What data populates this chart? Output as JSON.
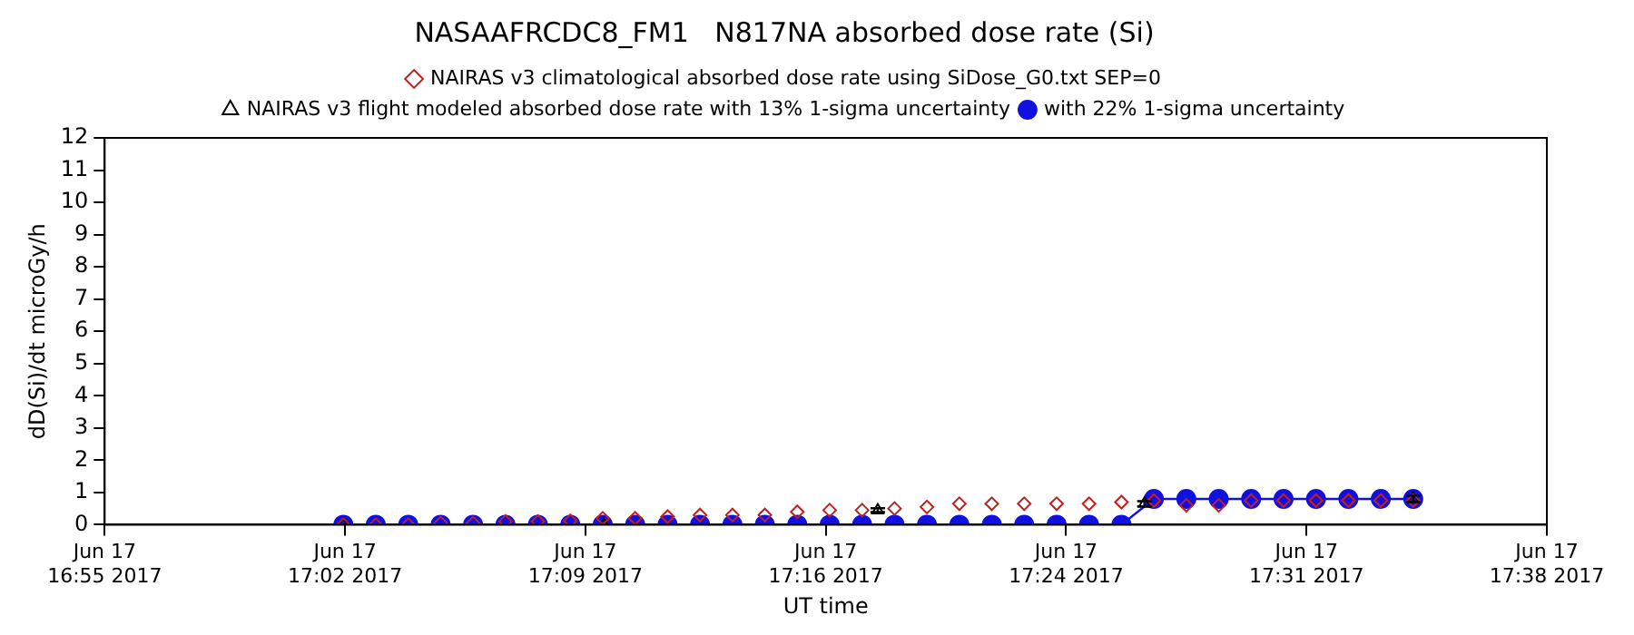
{
  "chart_data": {
    "type": "line",
    "title": "NASAAFRCDC8_FM1   N817NA absorbed dose rate (Si)",
    "xlabel": "UT time",
    "ylabel": "dD(Si)/dt microGy/h",
    "xlim": [
      "2017-06-17T16:55",
      "2017-06-17T17:38"
    ],
    "xticks": [
      {
        "value": "2017-06-17T16:55",
        "label": "Jun 17\n16:55 2017"
      },
      {
        "value": "2017-06-17T17:02:10",
        "label": "Jun 17\n17:02 2017"
      },
      {
        "value": "2017-06-17T17:09:20",
        "label": "Jun 17\n17:09 2017"
      },
      {
        "value": "2017-06-17T17:16:30",
        "label": "Jun 17\n17:16 2017"
      },
      {
        "value": "2017-06-17T17:23:40",
        "label": "Jun 17\n17:24 2017"
      },
      {
        "value": "2017-06-17T17:30:50",
        "label": "Jun 17\n17:31 2017"
      },
      {
        "value": "2017-06-17T17:38",
        "label": "Jun 17\n17:38 2017"
      }
    ],
    "ylim": [
      0,
      12
    ],
    "yticks": [
      0,
      1,
      2,
      3,
      4,
      5,
      6,
      7,
      8,
      9,
      10,
      11,
      12
    ],
    "grid": false,
    "legend": "top",
    "series": [
      {
        "name": "NAIRAS v3 climatological absorbed dose rate using SiDose_G0.txt SEP=0",
        "type": "scatter",
        "marker": "diamond",
        "color": "#c02020",
        "x": [
          "2017-06-17T17:02:07",
          "2017-06-17T17:03:05",
          "2017-06-17T17:04:03",
          "2017-06-17T17:05:01",
          "2017-06-17T17:05:59",
          "2017-06-17T17:06:57",
          "2017-06-17T17:07:55",
          "2017-06-17T17:08:53",
          "2017-06-17T17:09:51",
          "2017-06-17T17:10:49",
          "2017-06-17T17:11:47",
          "2017-06-17T17:12:45",
          "2017-06-17T17:13:43",
          "2017-06-17T17:14:41",
          "2017-06-17T17:15:39",
          "2017-06-17T17:16:37",
          "2017-06-17T17:17:35",
          "2017-06-17T17:18:33",
          "2017-06-17T17:19:31",
          "2017-06-17T17:20:29",
          "2017-06-17T17:21:27",
          "2017-06-17T17:22:25",
          "2017-06-17T17:23:23",
          "2017-06-17T17:24:21",
          "2017-06-17T17:25:19",
          "2017-06-17T17:26:17",
          "2017-06-17T17:27:15",
          "2017-06-17T17:28:13",
          "2017-06-17T17:29:11",
          "2017-06-17T17:30:09",
          "2017-06-17T17:31:07",
          "2017-06-17T17:32:05",
          "2017-06-17T17:33:03",
          "2017-06-17T17:34:01"
        ],
        "values": [
          0,
          0,
          0,
          0.05,
          0.05,
          0.1,
          0.1,
          0.12,
          0.2,
          0.2,
          0.25,
          0.3,
          0.3,
          0.3,
          0.4,
          0.45,
          0.45,
          0.5,
          0.55,
          0.65,
          0.65,
          0.65,
          0.65,
          0.65,
          0.7,
          0.75,
          0.6,
          0.6,
          0.75,
          0.75,
          0.75,
          0.75,
          0.75,
          0.75
        ]
      },
      {
        "name": "NAIRAS v3 flight modeled absorbed dose rate with 13% 1-sigma uncertainty",
        "type": "scatter",
        "marker": "triangle",
        "color": "#000000",
        "x": [
          "2017-06-17T17:02:07",
          "2017-06-17T17:09:53",
          "2017-06-17T17:18:03",
          "2017-06-17T17:26:00",
          "2017-06-17T17:34:01"
        ],
        "values": [
          0,
          0,
          0.45,
          0.65,
          0.8
        ],
        "errors": [
          null,
          null,
          0.06,
          0.08,
          0.1
        ]
      },
      {
        "name": "with 22% 1-sigma uncertainty",
        "type": "line",
        "marker": "circle",
        "line_style": "solid",
        "color": "#1010e0",
        "x": [
          "2017-06-17T17:02:07",
          "2017-06-17T17:03:05",
          "2017-06-17T17:04:03",
          "2017-06-17T17:05:01",
          "2017-06-17T17:05:59",
          "2017-06-17T17:06:57",
          "2017-06-17T17:07:55",
          "2017-06-17T17:08:53",
          "2017-06-17T17:09:51",
          "2017-06-17T17:10:49",
          "2017-06-17T17:11:47",
          "2017-06-17T17:12:45",
          "2017-06-17T17:13:43",
          "2017-06-17T17:14:41",
          "2017-06-17T17:15:39",
          "2017-06-17T17:16:37",
          "2017-06-17T17:17:35",
          "2017-06-17T17:18:33",
          "2017-06-17T17:19:31",
          "2017-06-17T17:20:29",
          "2017-06-17T17:21:27",
          "2017-06-17T17:22:25",
          "2017-06-17T17:23:23",
          "2017-06-17T17:24:21",
          "2017-06-17T17:25:19",
          "2017-06-17T17:26:17",
          "2017-06-17T17:27:15",
          "2017-06-17T17:28:13",
          "2017-06-17T17:29:11",
          "2017-06-17T17:30:09",
          "2017-06-17T17:31:07",
          "2017-06-17T17:32:05",
          "2017-06-17T17:33:03",
          "2017-06-17T17:34:01"
        ],
        "values": [
          0,
          0,
          0,
          0,
          0,
          0,
          0,
          0,
          0,
          0,
          0,
          0,
          0,
          0,
          0,
          0,
          0,
          0,
          0,
          0,
          0,
          0,
          0,
          0,
          0,
          0.8,
          0.8,
          0.8,
          0.8,
          0.8,
          0.8,
          0.8,
          0.8,
          0.8
        ]
      }
    ]
  }
}
